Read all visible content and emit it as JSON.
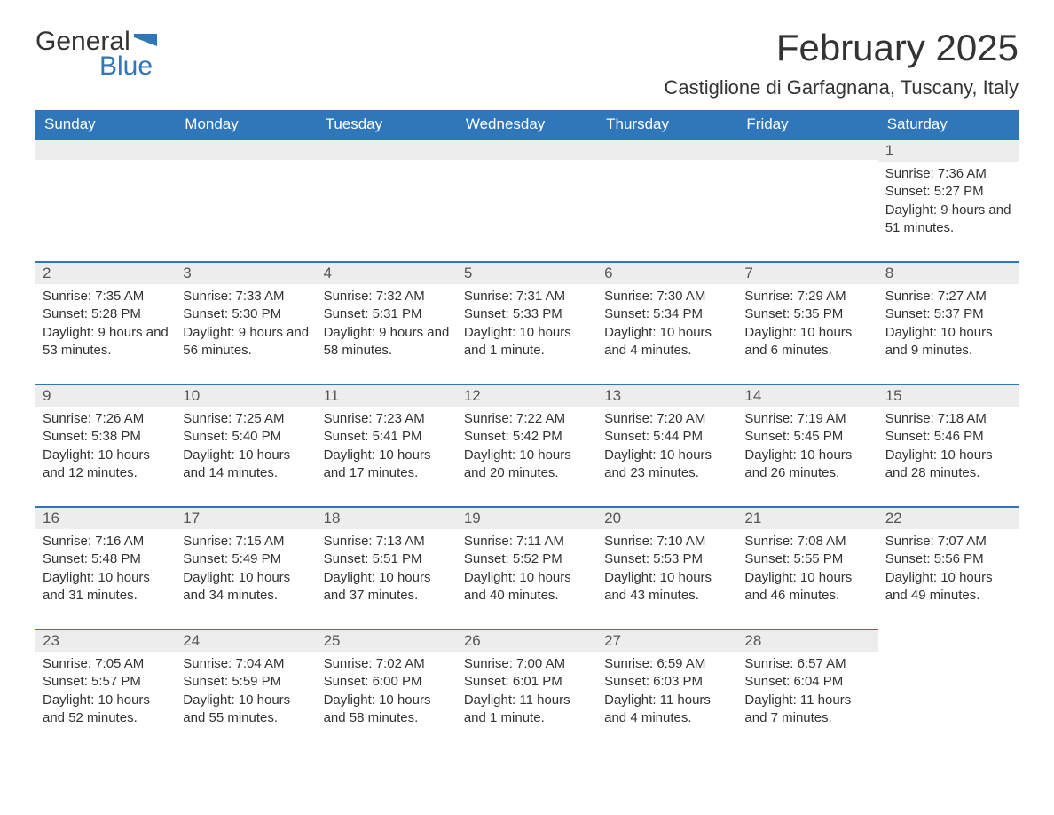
{
  "brand": {
    "word1": "General",
    "word2": "Blue",
    "accent_color": "#2f76bb",
    "text_color": "#333333"
  },
  "title": "February 2025",
  "location": "Castiglione di Garfagnana, Tuscany, Italy",
  "columns": [
    "Sunday",
    "Monday",
    "Tuesday",
    "Wednesday",
    "Thursday",
    "Friday",
    "Saturday"
  ],
  "colors": {
    "header_bg": "#2f76bb",
    "header_text": "#ffffff",
    "daybar_bg": "#ededed",
    "daybar_border": "#2f76bb",
    "body_bg": "#ffffff",
    "text": "#333333"
  },
  "fonts": {
    "title_size": 42,
    "location_size": 22,
    "header_size": 17,
    "daynum_size": 17,
    "body_size": 15
  },
  "weeks": [
    [
      null,
      null,
      null,
      null,
      null,
      null,
      {
        "n": "1",
        "sunrise": "Sunrise: 7:36 AM",
        "sunset": "Sunset: 5:27 PM",
        "daylight": "Daylight: 9 hours and 51 minutes."
      }
    ],
    [
      {
        "n": "2",
        "sunrise": "Sunrise: 7:35 AM",
        "sunset": "Sunset: 5:28 PM",
        "daylight": "Daylight: 9 hours and 53 minutes."
      },
      {
        "n": "3",
        "sunrise": "Sunrise: 7:33 AM",
        "sunset": "Sunset: 5:30 PM",
        "daylight": "Daylight: 9 hours and 56 minutes."
      },
      {
        "n": "4",
        "sunrise": "Sunrise: 7:32 AM",
        "sunset": "Sunset: 5:31 PM",
        "daylight": "Daylight: 9 hours and 58 minutes."
      },
      {
        "n": "5",
        "sunrise": "Sunrise: 7:31 AM",
        "sunset": "Sunset: 5:33 PM",
        "daylight": "Daylight: 10 hours and 1 minute."
      },
      {
        "n": "6",
        "sunrise": "Sunrise: 7:30 AM",
        "sunset": "Sunset: 5:34 PM",
        "daylight": "Daylight: 10 hours and 4 minutes."
      },
      {
        "n": "7",
        "sunrise": "Sunrise: 7:29 AM",
        "sunset": "Sunset: 5:35 PM",
        "daylight": "Daylight: 10 hours and 6 minutes."
      },
      {
        "n": "8",
        "sunrise": "Sunrise: 7:27 AM",
        "sunset": "Sunset: 5:37 PM",
        "daylight": "Daylight: 10 hours and 9 minutes."
      }
    ],
    [
      {
        "n": "9",
        "sunrise": "Sunrise: 7:26 AM",
        "sunset": "Sunset: 5:38 PM",
        "daylight": "Daylight: 10 hours and 12 minutes."
      },
      {
        "n": "10",
        "sunrise": "Sunrise: 7:25 AM",
        "sunset": "Sunset: 5:40 PM",
        "daylight": "Daylight: 10 hours and 14 minutes."
      },
      {
        "n": "11",
        "sunrise": "Sunrise: 7:23 AM",
        "sunset": "Sunset: 5:41 PM",
        "daylight": "Daylight: 10 hours and 17 minutes."
      },
      {
        "n": "12",
        "sunrise": "Sunrise: 7:22 AM",
        "sunset": "Sunset: 5:42 PM",
        "daylight": "Daylight: 10 hours and 20 minutes."
      },
      {
        "n": "13",
        "sunrise": "Sunrise: 7:20 AM",
        "sunset": "Sunset: 5:44 PM",
        "daylight": "Daylight: 10 hours and 23 minutes."
      },
      {
        "n": "14",
        "sunrise": "Sunrise: 7:19 AM",
        "sunset": "Sunset: 5:45 PM",
        "daylight": "Daylight: 10 hours and 26 minutes."
      },
      {
        "n": "15",
        "sunrise": "Sunrise: 7:18 AM",
        "sunset": "Sunset: 5:46 PM",
        "daylight": "Daylight: 10 hours and 28 minutes."
      }
    ],
    [
      {
        "n": "16",
        "sunrise": "Sunrise: 7:16 AM",
        "sunset": "Sunset: 5:48 PM",
        "daylight": "Daylight: 10 hours and 31 minutes."
      },
      {
        "n": "17",
        "sunrise": "Sunrise: 7:15 AM",
        "sunset": "Sunset: 5:49 PM",
        "daylight": "Daylight: 10 hours and 34 minutes."
      },
      {
        "n": "18",
        "sunrise": "Sunrise: 7:13 AM",
        "sunset": "Sunset: 5:51 PM",
        "daylight": "Daylight: 10 hours and 37 minutes."
      },
      {
        "n": "19",
        "sunrise": "Sunrise: 7:11 AM",
        "sunset": "Sunset: 5:52 PM",
        "daylight": "Daylight: 10 hours and 40 minutes."
      },
      {
        "n": "20",
        "sunrise": "Sunrise: 7:10 AM",
        "sunset": "Sunset: 5:53 PM",
        "daylight": "Daylight: 10 hours and 43 minutes."
      },
      {
        "n": "21",
        "sunrise": "Sunrise: 7:08 AM",
        "sunset": "Sunset: 5:55 PM",
        "daylight": "Daylight: 10 hours and 46 minutes."
      },
      {
        "n": "22",
        "sunrise": "Sunrise: 7:07 AM",
        "sunset": "Sunset: 5:56 PM",
        "daylight": "Daylight: 10 hours and 49 minutes."
      }
    ],
    [
      {
        "n": "23",
        "sunrise": "Sunrise: 7:05 AM",
        "sunset": "Sunset: 5:57 PM",
        "daylight": "Daylight: 10 hours and 52 minutes."
      },
      {
        "n": "24",
        "sunrise": "Sunrise: 7:04 AM",
        "sunset": "Sunset: 5:59 PM",
        "daylight": "Daylight: 10 hours and 55 minutes."
      },
      {
        "n": "25",
        "sunrise": "Sunrise: 7:02 AM",
        "sunset": "Sunset: 6:00 PM",
        "daylight": "Daylight: 10 hours and 58 minutes."
      },
      {
        "n": "26",
        "sunrise": "Sunrise: 7:00 AM",
        "sunset": "Sunset: 6:01 PM",
        "daylight": "Daylight: 11 hours and 1 minute."
      },
      {
        "n": "27",
        "sunrise": "Sunrise: 6:59 AM",
        "sunset": "Sunset: 6:03 PM",
        "daylight": "Daylight: 11 hours and 4 minutes."
      },
      {
        "n": "28",
        "sunrise": "Sunrise: 6:57 AM",
        "sunset": "Sunset: 6:04 PM",
        "daylight": "Daylight: 11 hours and 7 minutes."
      },
      null
    ]
  ]
}
